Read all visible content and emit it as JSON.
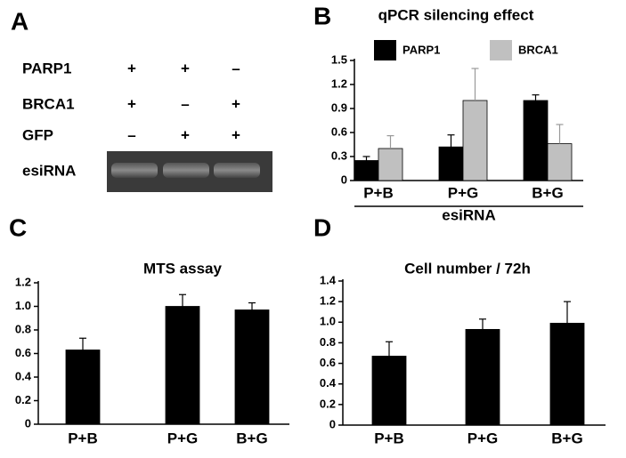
{
  "panel_a": {
    "label": "A",
    "rows": [
      {
        "name": "PARP1",
        "marks": [
          "+",
          "+",
          "–"
        ]
      },
      {
        "name": "BRCA1",
        "marks": [
          "+",
          "–",
          "+"
        ]
      },
      {
        "name": "GFP",
        "marks": [
          "–",
          "+",
          "+"
        ]
      }
    ],
    "gel_label": "esiRNA"
  },
  "chart_data": [
    {
      "type": "bar",
      "panel_label": "B",
      "title": "qPCR silencing effect",
      "xlabel": "esiRNA",
      "categories": [
        "P+B",
        "P+G",
        "B+G"
      ],
      "series": [
        {
          "name": "PARP1",
          "color": "#000000",
          "values": [
            0.25,
            0.42,
            1.0
          ],
          "errors": [
            0.05,
            0.15,
            0.07
          ]
        },
        {
          "name": "BRCA1",
          "color": "#c0c0c0",
          "values": [
            0.4,
            1.0,
            0.46
          ],
          "errors": [
            0.16,
            0.4,
            0.24
          ]
        }
      ],
      "ylim": [
        0,
        1.5
      ],
      "yticks": [
        0,
        0.3,
        0.6,
        0.9,
        1.2,
        1.5
      ]
    },
    {
      "type": "bar",
      "panel_label": "C",
      "title": "MTS assay",
      "categories": [
        "P+B",
        "P+G",
        "B+G"
      ],
      "values": [
        0.63,
        1.0,
        0.97
      ],
      "errors": [
        0.1,
        0.1,
        0.06
      ],
      "color": "#000000",
      "ylim": [
        0,
        1.2
      ],
      "yticks": [
        0,
        0.2,
        0.4,
        0.6,
        0.8,
        {
          "value": 1,
          "label": "1.0"
        },
        1.2
      ]
    },
    {
      "type": "bar",
      "panel_label": "D",
      "title": "Cell number / 72h",
      "categories": [
        "P+B",
        "P+G",
        "B+G"
      ],
      "values": [
        0.67,
        0.93,
        0.99
      ],
      "errors": [
        0.14,
        0.1,
        0.21
      ],
      "color": "#000000",
      "ylim": [
        0,
        1.4
      ],
      "yticks": [
        0,
        0.2,
        0.4,
        0.6,
        0.8,
        {
          "value": 1,
          "label": "1.0"
        },
        1.2,
        1.4
      ]
    }
  ]
}
